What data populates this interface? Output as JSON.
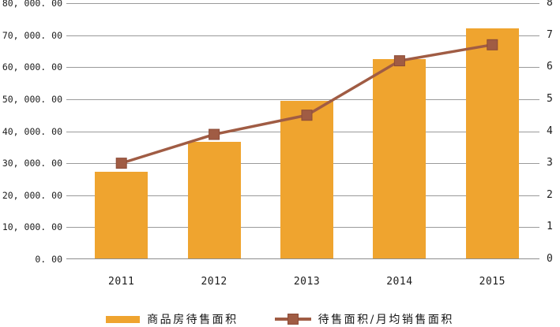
{
  "chart_data": {
    "type": "bar",
    "subtype": "combo-bar-line",
    "categories": [
      "2011",
      "2012",
      "2013",
      "2014",
      "2015"
    ],
    "series": [
      {
        "name": "商品房待售面积",
        "type": "bar",
        "axis": "left",
        "values": [
          27200,
          36500,
          49300,
          62200,
          71900
        ],
        "color": "#EFA42F"
      },
      {
        "name": "待售面积/月均销售面积",
        "type": "line",
        "axis": "right",
        "marker": "square",
        "values": [
          3.0,
          3.9,
          4.5,
          6.2,
          6.7
        ],
        "color": "#A05C44",
        "marker_border_color": "#8C4B37"
      }
    ],
    "title": "",
    "xlabel": "",
    "ylabel": "",
    "left_axis": {
      "min": 0,
      "max": 80000,
      "step": 10000,
      "tick_labels_top_to_bottom": [
        "80, 000. 00",
        "70, 000. 00",
        "60, 000. 00",
        "50, 000. 00",
        "40, 000. 00",
        "30, 000. 00",
        "20, 000. 00",
        "10, 000. 00",
        "0. 00"
      ]
    },
    "right_axis": {
      "min": 0,
      "max": 8,
      "step": 1,
      "tick_labels_top_to_bottom": [
        "8",
        "7",
        "6",
        "5",
        "4",
        "3",
        "2",
        "1",
        "0"
      ]
    },
    "grid": true,
    "gridline_color": "#9A9A9A",
    "axis_line_color": "#8E8E8E",
    "legend_position": "bottom"
  },
  "legend": {
    "bar_label": "商品房待售面积",
    "line_label": "待售面积/月均销售面积"
  }
}
